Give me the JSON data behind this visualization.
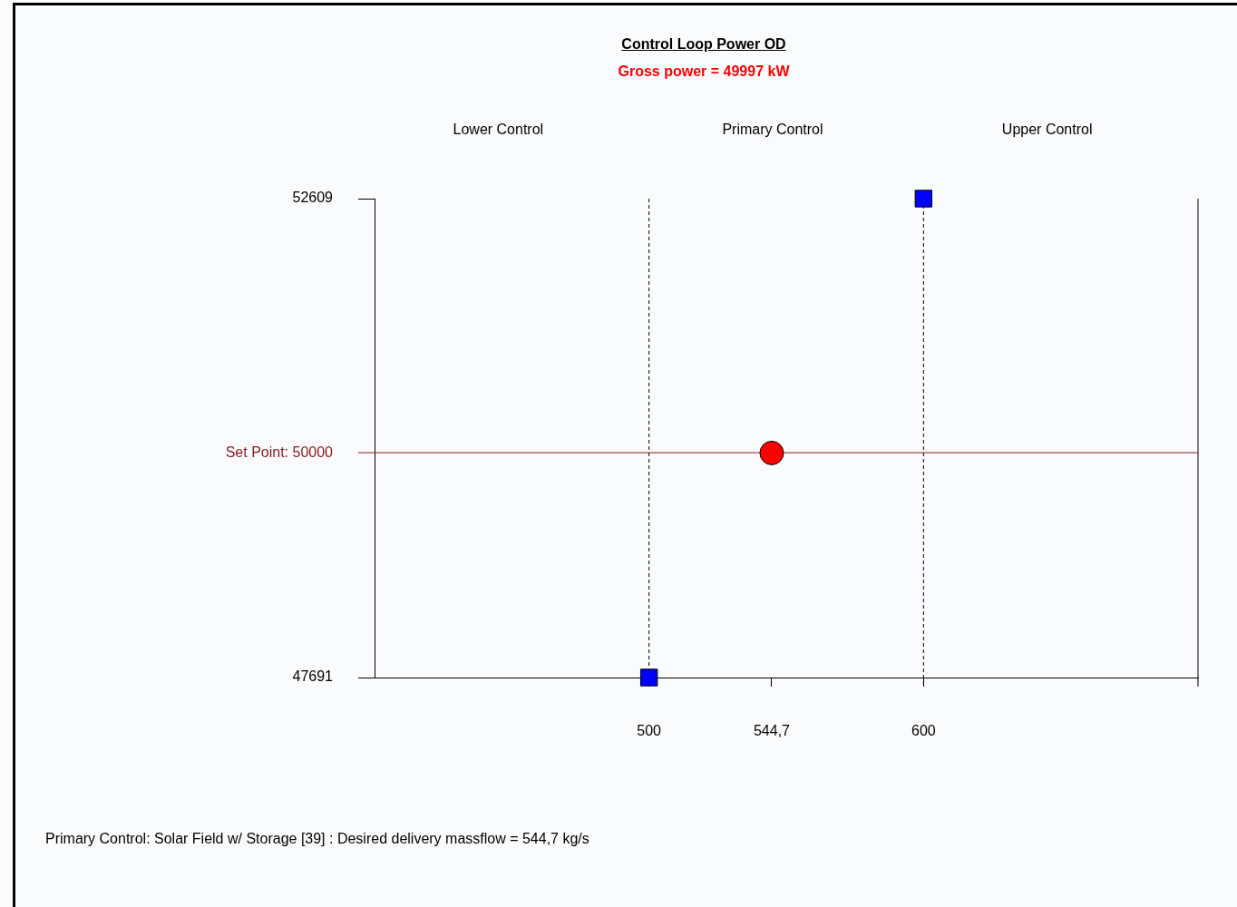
{
  "chart_data": {
    "type": "scatter",
    "title": "Control Loop Power OD",
    "subtitle": "Gross power = 49997 kW",
    "series": [
      {
        "color": "#ff0000",
        "marker": "circle",
        "x": [
          544.7
        ],
        "values": [
          49997
        ]
      },
      {
        "color": "#0000ff",
        "marker": "square",
        "x": [
          500,
          600
        ],
        "values": [
          47691,
          52609
        ]
      }
    ],
    "xlim": [
      400,
      700
    ],
    "xticks": [
      500,
      {
        "value": 544.7,
        "label": "544,7"
      },
      600
    ],
    "ylim": [
      47691,
      52609
    ],
    "yticks": [
      47691,
      52609
    ],
    "ref_lines": [
      {
        "axis": "y",
        "value": 50000,
        "label": "Set Point: 50000",
        "color": "#8b1a1a",
        "line_style": "solid"
      },
      {
        "axis": "x",
        "value": 500,
        "color": "#000000",
        "line_style": "dashed"
      },
      {
        "axis": "x",
        "value": 600,
        "color": "#000000",
        "line_style": "dashed"
      }
    ],
    "annotations": [
      "Lower Control",
      "Primary Control",
      "Upper Control",
      "Primary Control: Solar Field w/ Storage [39] : Desired delivery massflow = 544,7 kg/s"
    ],
    "grid": false,
    "legend": false
  }
}
